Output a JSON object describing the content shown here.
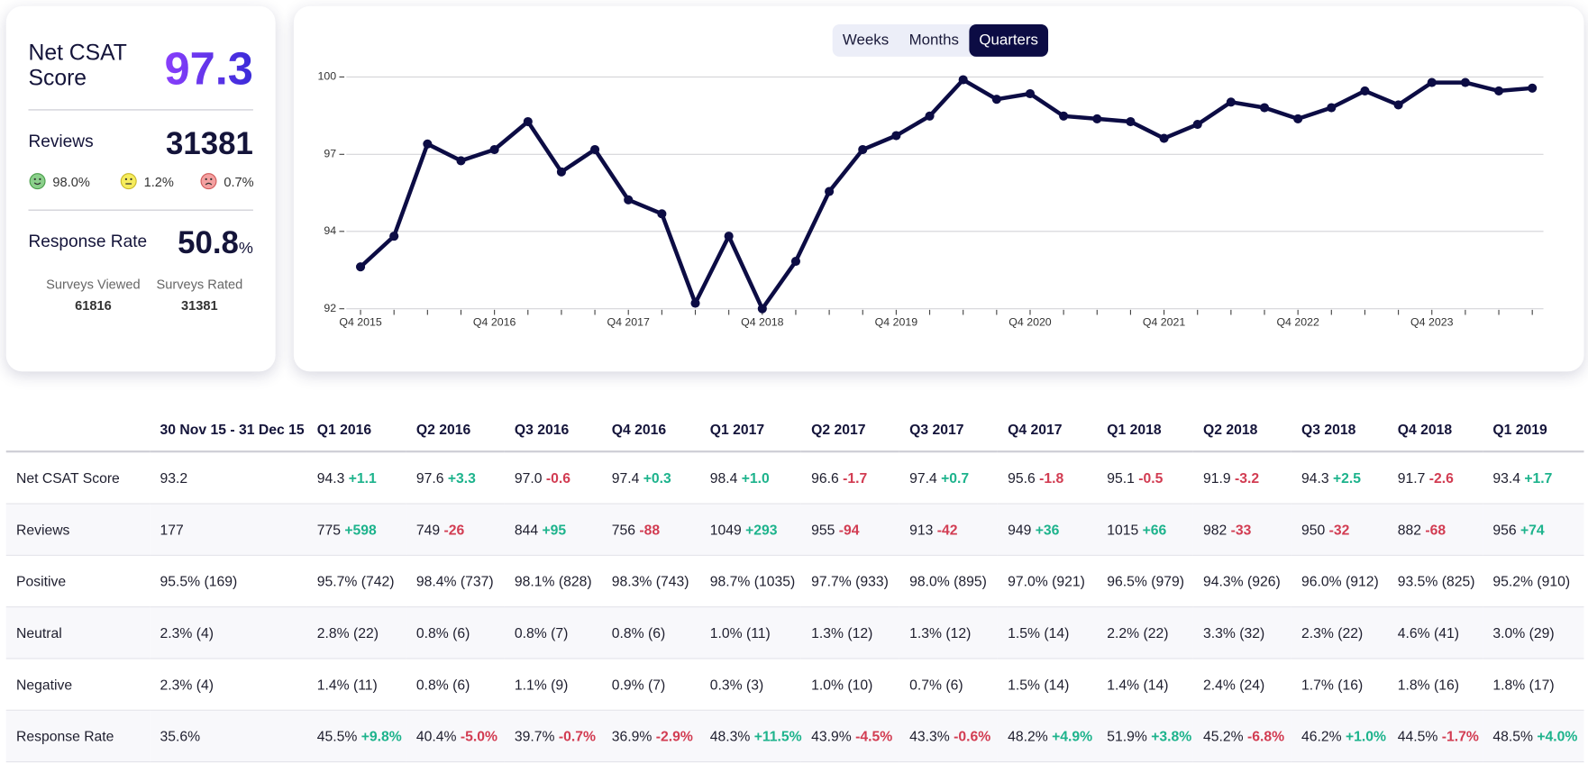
{
  "summary": {
    "net_csat_label": "Net CSAT Score",
    "net_csat": "97.3",
    "reviews_label": "Reviews",
    "reviews": "31381",
    "sentiment": [
      "98.0%",
      "1.2%",
      "0.7%"
    ],
    "response_label": "Response Rate",
    "response_value": "50.8",
    "response_unit": "%",
    "surveys": [
      {
        "label": "Surveys Viewed",
        "value": "61816"
      },
      {
        "label": "Surveys Rated",
        "value": "31381"
      }
    ]
  },
  "toggle": {
    "options": [
      "Weeks",
      "Months",
      "Quarters"
    ],
    "selected": "Quarters"
  },
  "chart_data": {
    "type": "line",
    "color": "#0c0c44",
    "grid": true,
    "categories": [
      "Q4 2015",
      null,
      null,
      null,
      "Q4 2016",
      null,
      null,
      null,
      "Q4 2017",
      null,
      null,
      null,
      "Q4 2018",
      null,
      null,
      null,
      "Q4 2019",
      null,
      null,
      null,
      "Q4 2020",
      null,
      null,
      null,
      "Q4 2021",
      null,
      null,
      null,
      "Q4 2022",
      null,
      null,
      null,
      "Q4 2023",
      null,
      null,
      null
    ],
    "values": [
      93.2,
      94.3,
      97.6,
      97.0,
      97.4,
      98.4,
      96.6,
      97.4,
      95.6,
      95.1,
      91.9,
      94.3,
      91.7,
      93.4,
      95.9,
      97.4,
      97.9,
      98.6,
      99.9,
      99.2,
      99.4,
      98.6,
      98.5,
      98.4,
      97.8,
      98.3,
      99.1,
      98.9,
      98.5,
      98.9,
      99.5,
      99.0,
      99.8,
      99.8,
      99.5,
      99.6
    ],
    "ylim": [
      91.7,
      100
    ],
    "yticks": [
      {
        "value": 91.7,
        "label": "92"
      },
      {
        "value": 94.47,
        "label": "94"
      },
      {
        "value": 97.23,
        "label": "97"
      },
      100
    ]
  },
  "table": {
    "columns": [
      "30 Nov 15 - 31 Dec 15",
      "Q1 2016",
      "Q2 2016",
      "Q3 2016",
      "Q4 2016",
      "Q1 2017",
      "Q2 2017",
      "Q3 2017",
      "Q4 2017",
      "Q1 2018",
      "Q2 2018",
      "Q3 2018",
      "Q4 2018",
      "Q1 2019"
    ],
    "rows": [
      {
        "label": "Net CSAT Score",
        "cells": [
          [
            "93.2"
          ],
          [
            "94.3",
            "+1.1"
          ],
          [
            "97.6",
            "+3.3"
          ],
          [
            "97.0",
            "-0.6"
          ],
          [
            "97.4",
            "+0.3"
          ],
          [
            "98.4",
            "+1.0"
          ],
          [
            "96.6",
            "-1.7"
          ],
          [
            "97.4",
            "+0.7"
          ],
          [
            "95.6",
            "-1.8"
          ],
          [
            "95.1",
            "-0.5"
          ],
          [
            "91.9",
            "-3.2"
          ],
          [
            "94.3",
            "+2.5"
          ],
          [
            "91.7",
            "-2.6"
          ],
          [
            "93.4",
            "+1.7"
          ]
        ]
      },
      {
        "label": "Reviews",
        "cells": [
          [
            "177"
          ],
          [
            "775",
            "+598"
          ],
          [
            "749",
            "-26"
          ],
          [
            "844",
            "+95"
          ],
          [
            "756",
            "-88"
          ],
          [
            "1049",
            "+293"
          ],
          [
            "955",
            "-94"
          ],
          [
            "913",
            "-42"
          ],
          [
            "949",
            "+36"
          ],
          [
            "1015",
            "+66"
          ],
          [
            "982",
            "-33"
          ],
          [
            "950",
            "-32"
          ],
          [
            "882",
            "-68"
          ],
          [
            "956",
            "+74"
          ]
        ]
      },
      {
        "label": "Positive",
        "cells": [
          [
            "95.5% (169)"
          ],
          [
            "95.7% (742)"
          ],
          [
            "98.4% (737)"
          ],
          [
            "98.1% (828)"
          ],
          [
            "98.3% (743)"
          ],
          [
            "98.7% (1035)"
          ],
          [
            "97.7% (933)"
          ],
          [
            "98.0% (895)"
          ],
          [
            "97.0% (921)"
          ],
          [
            "96.5% (979)"
          ],
          [
            "94.3% (926)"
          ],
          [
            "96.0% (912)"
          ],
          [
            "93.5% (825)"
          ],
          [
            "95.2% (910)"
          ]
        ]
      },
      {
        "label": "Neutral",
        "cells": [
          [
            "2.3% (4)"
          ],
          [
            "2.8% (22)"
          ],
          [
            "0.8% (6)"
          ],
          [
            "0.8% (7)"
          ],
          [
            "0.8% (6)"
          ],
          [
            "1.0% (11)"
          ],
          [
            "1.3% (12)"
          ],
          [
            "1.3% (12)"
          ],
          [
            "1.5% (14)"
          ],
          [
            "2.2% (22)"
          ],
          [
            "3.3% (32)"
          ],
          [
            "2.3% (22)"
          ],
          [
            "4.6% (41)"
          ],
          [
            "3.0% (29)"
          ]
        ]
      },
      {
        "label": "Negative",
        "cells": [
          [
            "2.3% (4)"
          ],
          [
            "1.4% (11)"
          ],
          [
            "0.8% (6)"
          ],
          [
            "1.1% (9)"
          ],
          [
            "0.9% (7)"
          ],
          [
            "0.3% (3)"
          ],
          [
            "1.0% (10)"
          ],
          [
            "0.7% (6)"
          ],
          [
            "1.5% (14)"
          ],
          [
            "1.4% (14)"
          ],
          [
            "2.4% (24)"
          ],
          [
            "1.7% (16)"
          ],
          [
            "1.8% (16)"
          ],
          [
            "1.8% (17)"
          ]
        ]
      },
      {
        "label": "Response Rate",
        "cells": [
          [
            "35.6%"
          ],
          [
            "45.5%",
            "+9.8%"
          ],
          [
            "40.4%",
            "-5.0%"
          ],
          [
            "39.7%",
            "-0.7%"
          ],
          [
            "36.9%",
            "-2.9%"
          ],
          [
            "48.3%",
            "+11.5%"
          ],
          [
            "43.9%",
            "-4.5%"
          ],
          [
            "43.3%",
            "-0.6%"
          ],
          [
            "48.2%",
            "+4.9%"
          ],
          [
            "51.9%",
            "+3.8%"
          ],
          [
            "45.2%",
            "-6.8%"
          ],
          [
            "46.2%",
            "+1.0%"
          ],
          [
            "44.5%",
            "-1.7%"
          ],
          [
            "48.5%",
            "+4.0%"
          ]
        ]
      }
    ]
  }
}
